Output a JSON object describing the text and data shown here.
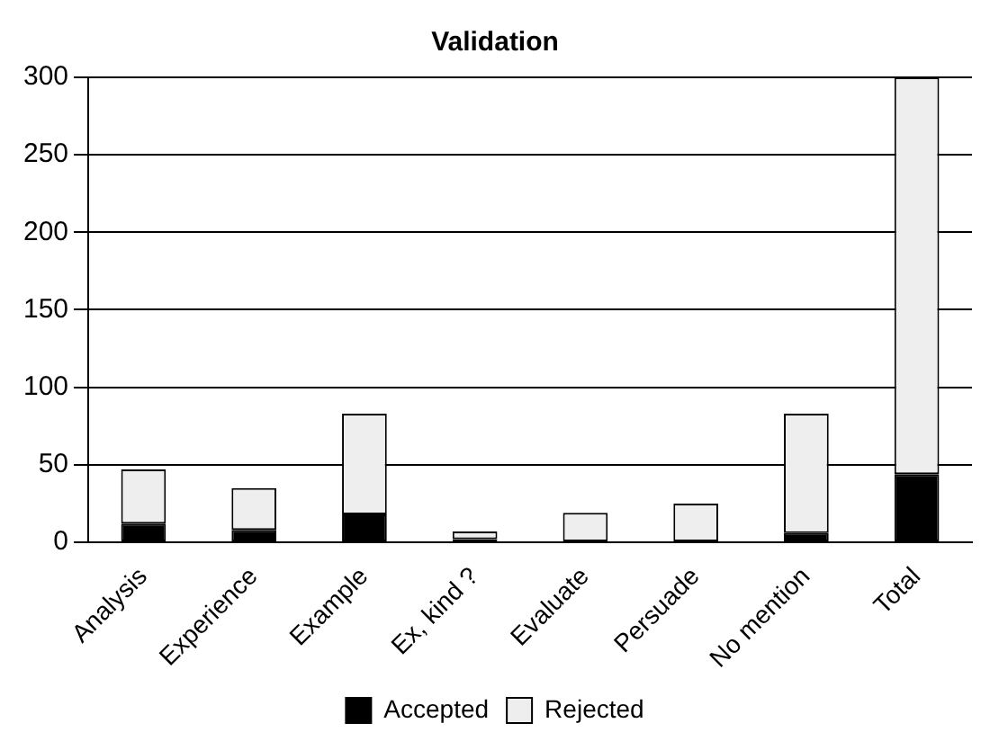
{
  "chart_data": {
    "type": "bar",
    "title": "Validation",
    "stacked": true,
    "categories": [
      "Analysis",
      "Experience",
      "Example",
      "Ex, kind ?",
      "Evaluate",
      "Persuade",
      "No mention",
      "Total"
    ],
    "series": [
      {
        "name": "Accepted",
        "color": "#000000",
        "values": [
          12,
          8,
          18,
          2,
          0,
          0,
          6,
          44
        ]
      },
      {
        "name": "Rejected",
        "color": "#eeeeee",
        "values": [
          35,
          27,
          65,
          5,
          19,
          25,
          77,
          256
        ]
      }
    ],
    "ylim": [
      0,
      300
    ],
    "yticks": [
      0,
      50,
      100,
      150,
      200,
      250,
      300
    ],
    "grid": "y",
    "legend": "bottom"
  }
}
